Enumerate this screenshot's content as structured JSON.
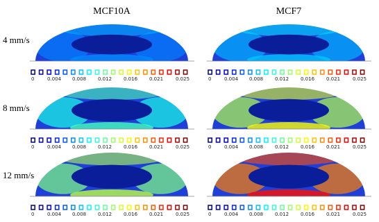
{
  "columns": [
    "MCF10A",
    "MCF7"
  ],
  "rows": [
    "4 mm/s",
    "8 mm/s",
    "12 mm/s"
  ],
  "colorbar": {
    "ticks": [
      "0",
      "0.004",
      "0.008",
      "0.012",
      "0.016",
      "0.021",
      "0.025"
    ]
  }
}
